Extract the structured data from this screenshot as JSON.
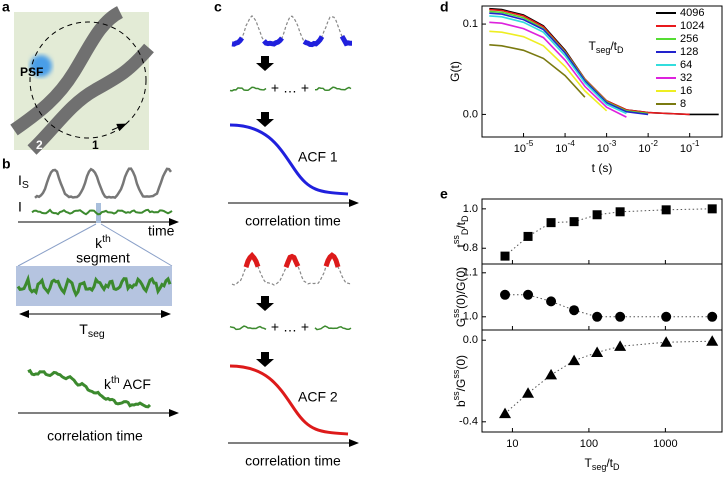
{
  "panel_labels": [
    "a",
    "b",
    "c",
    "d",
    "e"
  ],
  "panel_a": {
    "psf": "PSF",
    "track_1": "1",
    "track_2": "2"
  },
  "panel_b": {
    "intensity_s": [
      {
        "text": "I"
      },
      {
        "text": "S",
        "pos": "sub"
      }
    ],
    "intensity": "I",
    "time": "time",
    "segment_index": [
      {
        "text": "k"
      },
      {
        "text": "th",
        "pos": "sup"
      }
    ],
    "segment": "segment",
    "segment_length": [
      {
        "text": "T"
      },
      {
        "text": "seg",
        "pos": "sub"
      }
    ],
    "acf": [
      {
        "text": "k"
      },
      {
        "text": "th",
        "pos": "sup"
      },
      {
        "text": " ACF"
      }
    ],
    "axis": "correlation time"
  },
  "panel_c": {
    "ops_1": "+ … +",
    "acf_1": "ACF 1",
    "axis_1": "correlation time",
    "ops_2": "+ … +",
    "acf_2": "ACF 2",
    "axis_2": "correlation time"
  },
  "chart_data": [
    {
      "type": "line",
      "xscale": "log",
      "ylabel": "G(t)",
      "xlabel": "t (s)",
      "x": [
        1.5e-06,
        3e-06,
        1e-05,
        3e-05,
        0.0001,
        0.0003,
        0.001,
        0.003,
        0.01,
        0.03,
        0.1,
        0.5
      ],
      "xlim": [
        1e-06,
        0.6
      ],
      "xticks": [
        {
          "value": 1e-05,
          "label": [
            {
              "text": "10"
            },
            {
              "text": "-5",
              "pos": "sup"
            }
          ]
        },
        {
          "value": 0.0001,
          "label": [
            {
              "text": "10"
            },
            {
              "text": "-4",
              "pos": "sup"
            }
          ]
        },
        {
          "value": 0.001,
          "label": [
            {
              "text": "10"
            },
            {
              "text": "-3",
              "pos": "sup"
            }
          ]
        },
        {
          "value": 0.01,
          "label": [
            {
              "text": "10"
            },
            {
              "text": "-2",
              "pos": "sup"
            }
          ]
        },
        {
          "value": 0.1,
          "label": [
            {
              "text": "10"
            },
            {
              "text": "-1",
              "pos": "sup"
            }
          ]
        }
      ],
      "ylim": [
        -0.025,
        0.12
      ],
      "yticks": [
        {
          "value": 0,
          "label": "0.0"
        },
        0.1
      ],
      "legend": true,
      "legend_loc": "upper right",
      "legend_title": [
        {
          "text": "T"
        },
        {
          "text": "seg",
          "pos": "sub"
        },
        {
          "text": "/t"
        },
        {
          "text": "D",
          "pos": "sub"
        }
      ],
      "series": [
        {
          "name": "4096",
          "color": "#000000",
          "values": [
            0.117,
            0.116,
            0.11,
            0.098,
            0.071,
            0.039,
            0.015,
            0.005,
            0.002,
            0.001,
            0.0,
            0.0
          ]
        },
        {
          "name": "1024",
          "color": "#e8191c",
          "values": [
            0.116,
            0.115,
            0.109,
            0.097,
            0.07,
            0.039,
            0.015,
            0.005,
            0.002,
            0.001,
            0.0,
            null
          ]
        },
        {
          "name": "256",
          "color": "#55dd33",
          "values": [
            0.114,
            0.113,
            0.107,
            0.095,
            0.069,
            0.038,
            0.014,
            0.004,
            0.001,
            null,
            null,
            null
          ]
        },
        {
          "name": "128",
          "color": "#2222cc",
          "values": [
            0.112,
            0.111,
            0.105,
            0.094,
            0.068,
            0.037,
            0.013,
            0.003,
            0.0,
            null,
            null,
            null
          ]
        },
        {
          "name": "64",
          "color": "#33dddd",
          "values": [
            0.109,
            0.108,
            0.102,
            0.091,
            0.065,
            0.035,
            0.011,
            0.001,
            null,
            null,
            null,
            null
          ]
        },
        {
          "name": "32",
          "color": "#dd22dd",
          "values": [
            0.102,
            0.101,
            0.095,
            0.085,
            0.06,
            0.031,
            0.008,
            -0.003,
            null,
            null,
            null,
            null
          ]
        },
        {
          "name": "16",
          "color": "#eeee22",
          "values": [
            0.092,
            0.091,
            0.086,
            0.076,
            0.053,
            0.026,
            0.004,
            null,
            null,
            null,
            null,
            null
          ]
        },
        {
          "name": "8",
          "color": "#7a7a10",
          "values": [
            0.077,
            0.076,
            0.071,
            0.062,
            0.043,
            0.019,
            null,
            null,
            null,
            null,
            null,
            null
          ]
        }
      ]
    },
    {
      "type": "scatter",
      "xscale": "log",
      "marker": "square",
      "color": "#000000",
      "line_style": "dotted",
      "ylabel": [
        {
          "text": "t"
        },
        {
          "text": "ss",
          "pos": "sup"
        },
        {
          "text": "D",
          "pos": "sub"
        },
        {
          "text": "/t"
        },
        {
          "text": "D",
          "pos": "sub"
        }
      ],
      "x": [
        8,
        16,
        32,
        64,
        128,
        256,
        1024,
        4096
      ],
      "values": [
        0.76,
        0.86,
        0.93,
        0.935,
        0.97,
        0.985,
        0.995,
        1.0
      ],
      "xlim": [
        4,
        5500
      ],
      "ylim": [
        0.72,
        1.05
      ],
      "yticks": [
        0.8,
        {
          "value": 1,
          "label": "1.0"
        }
      ]
    },
    {
      "type": "scatter",
      "xscale": "log",
      "marker": "circle",
      "color": "#000000",
      "line_style": "dotted",
      "ylabel": [
        {
          "text": "G"
        },
        {
          "text": "ss",
          "pos": "sup"
        },
        {
          "text": "(0)/G(0)"
        }
      ],
      "x": [
        8,
        16,
        32,
        64,
        128,
        256,
        1024,
        4096
      ],
      "values": [
        1.05,
        1.05,
        1.035,
        1.015,
        1.0,
        1.0,
        1.0,
        1.0
      ],
      "xlim": [
        4,
        5500
      ],
      "ylim": [
        0.97,
        1.12
      ],
      "yticks": [
        {
          "value": 1,
          "label": "1.0"
        },
        1.1
      ]
    },
    {
      "type": "scatter",
      "xscale": "log",
      "marker": "triangle",
      "color": "#000000",
      "line_style": "dotted",
      "ylabel": [
        {
          "text": "b"
        },
        {
          "text": "ss",
          "pos": "sup"
        },
        {
          "text": "/G"
        },
        {
          "text": "ss",
          "pos": "sup"
        },
        {
          "text": "(0)"
        }
      ],
      "xlabel": [
        {
          "text": "T"
        },
        {
          "text": "seg",
          "pos": "sub"
        },
        {
          "text": "/t"
        },
        {
          "text": "D",
          "pos": "sub"
        }
      ],
      "x": [
        8,
        16,
        32,
        64,
        128,
        256,
        1024,
        4096
      ],
      "values": [
        -0.36,
        -0.26,
        -0.17,
        -0.1,
        -0.06,
        -0.03,
        -0.01,
        -0.005
      ],
      "xlim": [
        4,
        5500
      ],
      "ylim": [
        -0.45,
        0.05
      ],
      "xticks": [
        10,
        100,
        1000
      ],
      "yticks": [
        -0.4,
        {
          "value": 0,
          "label": "0.0"
        }
      ]
    }
  ]
}
